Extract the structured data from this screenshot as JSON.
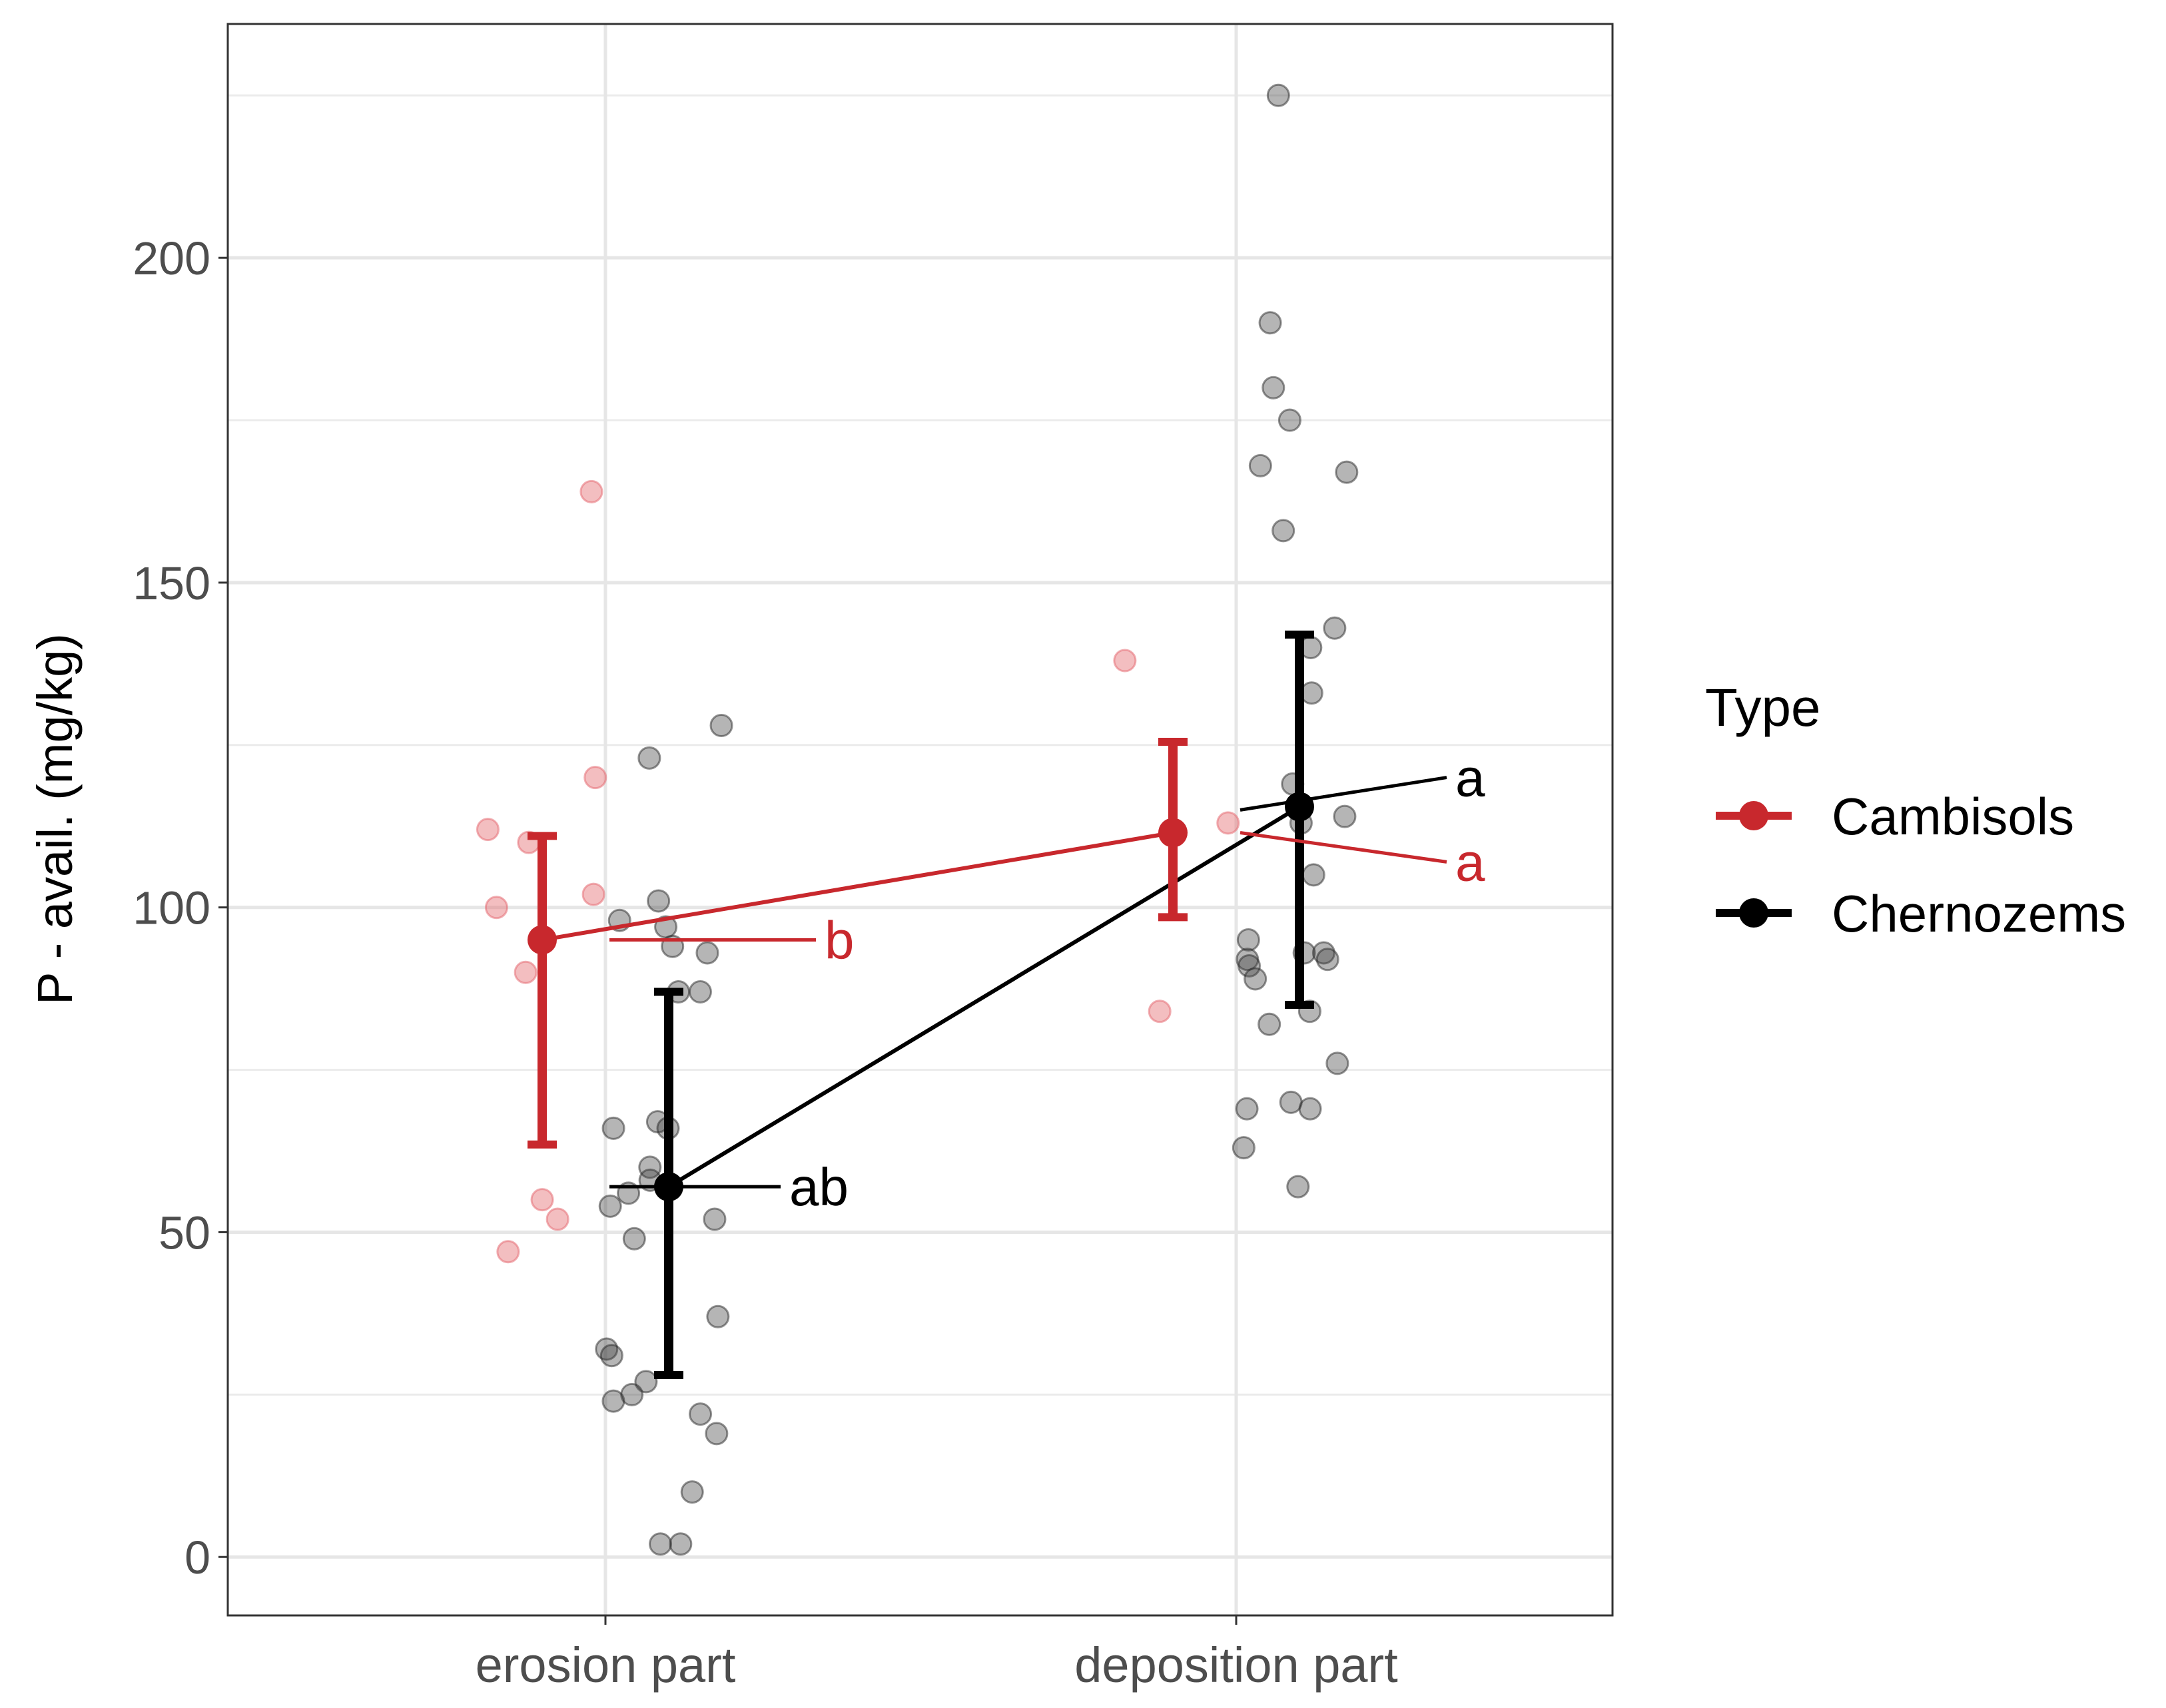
{
  "chart_data": {
    "type": "scatter",
    "title": "",
    "xlabel": "",
    "ylabel": "P - avail. (mg/kg)",
    "categories": [
      "erosion part",
      "deposition part"
    ],
    "ylim": [
      -9,
      236
    ],
    "yticks": [
      0,
      50,
      100,
      150,
      200
    ],
    "y_tick_labels": [
      "0",
      "50",
      "100",
      "150",
      "200"
    ],
    "grid": true,
    "legend": {
      "title": "Type",
      "position": "right",
      "entries": [
        "Cambisols",
        "Chernozems"
      ]
    },
    "colors": {
      "Cambisols": "#c8282d",
      "Chernozems": "#000000"
    },
    "series": [
      {
        "name": "Cambisols",
        "color": "#c8282d",
        "means": [
          95,
          111.5
        ],
        "ci_low": [
          63.5,
          98.5
        ],
        "ci_high": [
          111,
          125.5
        ],
        "letters": [
          "b",
          "a"
        ],
        "raw": [
          {
            "x": 1,
            "y": 164
          },
          {
            "x": 1,
            "y": 120
          },
          {
            "x": 1,
            "y": 112
          },
          {
            "x": 1,
            "y": 110
          },
          {
            "x": 1,
            "y": 102
          },
          {
            "x": 1,
            "y": 100
          },
          {
            "x": 1,
            "y": 90
          },
          {
            "x": 1,
            "y": 55
          },
          {
            "x": 1,
            "y": 52
          },
          {
            "x": 1,
            "y": 47
          },
          {
            "x": 2,
            "y": 138
          },
          {
            "x": 2,
            "y": 113
          },
          {
            "x": 2,
            "y": 84
          }
        ]
      },
      {
        "name": "Chernozems",
        "color": "#000000",
        "means": [
          57,
          115.5
        ],
        "ci_low": [
          28,
          85
        ],
        "ci_high": [
          87,
          142
        ],
        "letters": [
          "ab",
          "a"
        ],
        "raw": [
          {
            "x": 1,
            "y": 128
          },
          {
            "x": 1,
            "y": 123
          },
          {
            "x": 1,
            "y": 101
          },
          {
            "x": 1,
            "y": 98
          },
          {
            "x": 1,
            "y": 97
          },
          {
            "x": 1,
            "y": 94
          },
          {
            "x": 1,
            "y": 93
          },
          {
            "x": 1,
            "y": 87
          },
          {
            "x": 1,
            "y": 87
          },
          {
            "x": 1,
            "y": 67
          },
          {
            "x": 1,
            "y": 66
          },
          {
            "x": 1,
            "y": 66
          },
          {
            "x": 1,
            "y": 60
          },
          {
            "x": 1,
            "y": 58
          },
          {
            "x": 1,
            "y": 56
          },
          {
            "x": 1,
            "y": 54
          },
          {
            "x": 1,
            "y": 52
          },
          {
            "x": 1,
            "y": 49
          },
          {
            "x": 1,
            "y": 37
          },
          {
            "x": 1,
            "y": 32
          },
          {
            "x": 1,
            "y": 31
          },
          {
            "x": 1,
            "y": 27
          },
          {
            "x": 1,
            "y": 25
          },
          {
            "x": 1,
            "y": 24
          },
          {
            "x": 1,
            "y": 22
          },
          {
            "x": 1,
            "y": 19
          },
          {
            "x": 1,
            "y": 10
          },
          {
            "x": 1,
            "y": 2
          },
          {
            "x": 1,
            "y": 2
          },
          {
            "x": 2,
            "y": 225
          },
          {
            "x": 2,
            "y": 190
          },
          {
            "x": 2,
            "y": 180
          },
          {
            "x": 2,
            "y": 175
          },
          {
            "x": 2,
            "y": 168
          },
          {
            "x": 2,
            "y": 167
          },
          {
            "x": 2,
            "y": 158
          },
          {
            "x": 2,
            "y": 143
          },
          {
            "x": 2,
            "y": 140
          },
          {
            "x": 2,
            "y": 133
          },
          {
            "x": 2,
            "y": 119
          },
          {
            "x": 2,
            "y": 114
          },
          {
            "x": 2,
            "y": 113
          },
          {
            "x": 2,
            "y": 105
          },
          {
            "x": 2,
            "y": 95
          },
          {
            "x": 2,
            "y": 93
          },
          {
            "x": 2,
            "y": 93
          },
          {
            "x": 2,
            "y": 92
          },
          {
            "x": 2,
            "y": 92
          },
          {
            "x": 2,
            "y": 91
          },
          {
            "x": 2,
            "y": 89
          },
          {
            "x": 2,
            "y": 84
          },
          {
            "x": 2,
            "y": 82
          },
          {
            "x": 2,
            "y": 76
          },
          {
            "x": 2,
            "y": 70
          },
          {
            "x": 2,
            "y": 69
          },
          {
            "x": 2,
            "y": 69
          },
          {
            "x": 2,
            "y": 63
          },
          {
            "x": 2,
            "y": 57
          }
        ]
      }
    ]
  }
}
